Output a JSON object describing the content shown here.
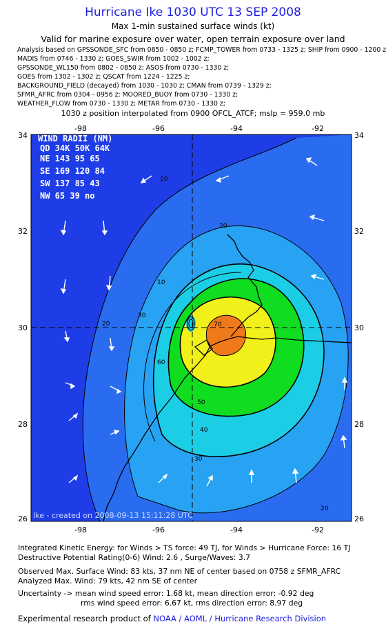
{
  "header": {
    "title": "Hurricane Ike 1030 UTC 13 SEP 2008",
    "subtitle1": "Max 1-min sustained surface winds (kt)",
    "subtitle2": "Valid for marine exposure over water, open terrain exposure over land",
    "sources": [
      "Analysis based on  GPSSONDE_SFC from 0850 - 0850 z;  FCMP_TOWER from 0733 - 1325 z;  SHIP from 0900 - 1200 z;",
      "MADIS from 0746 - 1330 z;  GOES_SWIR from 1002 - 1002 z;",
      "GPSSONDE_WL150 from 0802 - 0850 z;  ASOS from 0730 - 1330 z;",
      "GOES from 1302 - 1302 z;  QSCAT from 1224 - 1225 z;",
      "BACKGROUND_FIELD (decayed) from 1030 - 1030 z;  CMAN from 0739 - 1329 z;",
      "SFMR_AFRC from 0304 - 0956 z;  MOORED_BUOY from 0730 - 1330 z;",
      "WEATHER_FLOW from 0730 - 1330 z;  METAR from 0730 - 1330 z;"
    ],
    "interpolation": "1030 z position interpolated from 0900 OFCL_ATCF; mslp = 959.0 mb"
  },
  "map": {
    "lon_ticks": [
      "-98",
      "-96",
      "-94",
      "-92"
    ],
    "lat_ticks": [
      "34",
      "32",
      "30",
      "28",
      "26"
    ],
    "lon_range": [
      -99.2,
      -91.3
    ],
    "lat_range": [
      26,
      34
    ],
    "center": {
      "lon": -95.15,
      "lat": 30.0
    },
    "wind_radii": {
      "title": "WIND RADII (NM)",
      "header": "QD 34K 50K 64K",
      "rows": [
        "NE 143  95  65",
        "SE 169 120  84",
        "SW 137  85  43",
        "NW  65  39  no"
      ]
    },
    "credit": "Ike - created on 2008-09-13 15:11:28 UTC",
    "contour_labels": [
      "10",
      "20",
      "30",
      "40",
      "50",
      "60",
      "70",
      "30",
      "20",
      "20",
      "10"
    ],
    "colors": {
      "deep_blue": "#1f3de6",
      "blue": "#2a6cf0",
      "light_blue": "#28a2f2",
      "cyan": "#1ccde6",
      "green": "#10dc20",
      "yellow": "#f2f01a",
      "orange": "#f07a1a"
    }
  },
  "footer": {
    "ike": "Integrated Kinetic Energy:  for Winds > TS force: 49 TJ,  for Winds > Hurricane Force: 16 TJ",
    "dpr": "Destructive Potential Rating(0-6)   Wind: 2.6 , Surge/Waves: 3.7",
    "observed": "Observed Max. Surface Wind: 83 kts, 37 nm NE of center based on 0758 z SFMR_AFRC",
    "analyzed": "Analyzed Max. Wind: 79 kts, 42 nm SE of center",
    "uncertainty1": "Uncertainty -> mean wind speed error: 1.68 kt,   mean direction error:  -0.92 deg",
    "uncertainty2": "rms wind speed error: 6.67 kt,   rms direction error: 8.97 deg",
    "product_prefix": "Experimental research product of ",
    "product_org": "NOAA / AOML / Hurricane Research Division"
  }
}
